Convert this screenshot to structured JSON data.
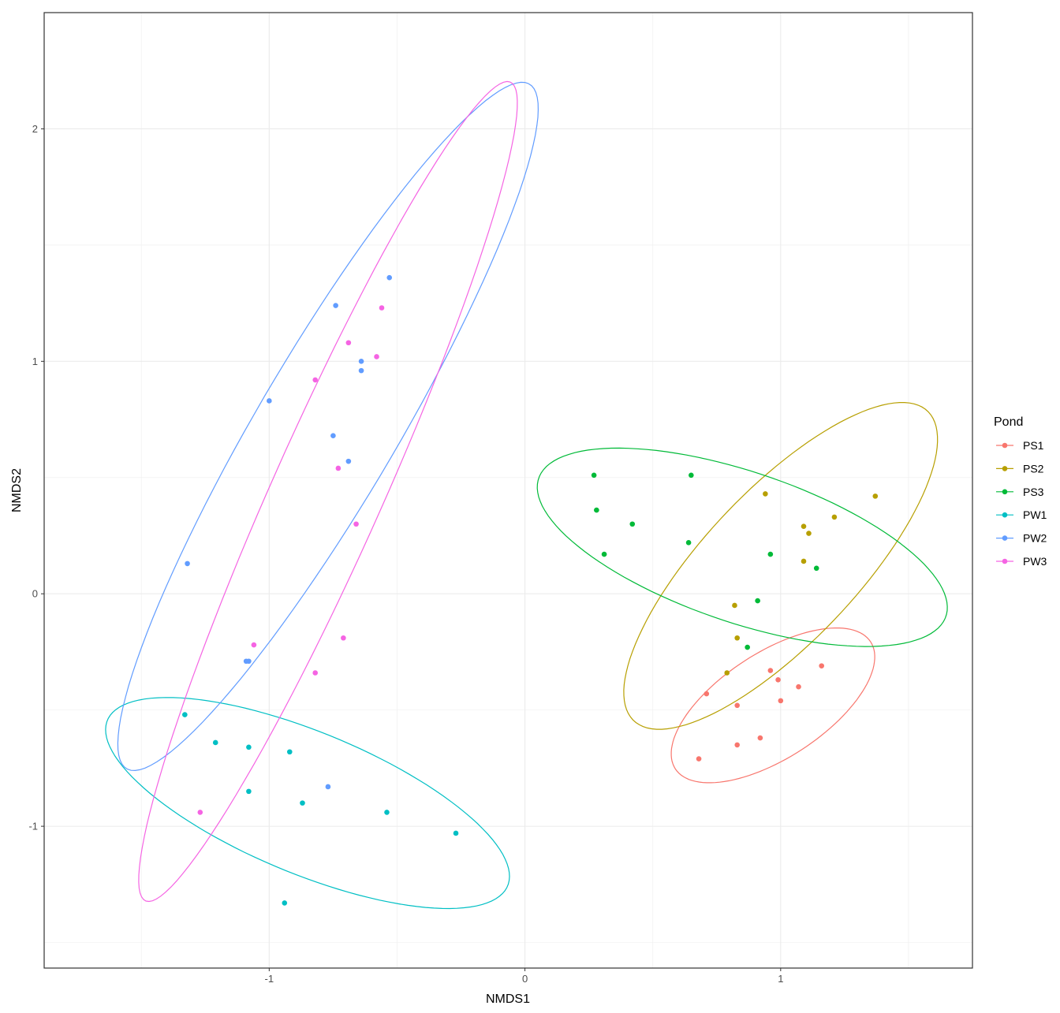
{
  "chart_data": {
    "type": "scatter",
    "xlabel": "NMDS1",
    "ylabel": "NMDS2",
    "xlim": [
      -1.88,
      1.75
    ],
    "ylim": [
      -1.61,
      2.5
    ],
    "x_ticks": [
      -1,
      0,
      1
    ],
    "x_tick_labels": [
      "-1",
      "0",
      "1"
    ],
    "y_ticks": [
      -1,
      0,
      1,
      2
    ],
    "y_tick_labels": [
      "-1",
      "0",
      "1",
      "2"
    ],
    "grid": true,
    "theme": "bw",
    "legend": {
      "title": "Pond",
      "position": "right"
    },
    "series": [
      {
        "name": "PS1",
        "color": "#F8766D",
        "ellipse": {
          "cx": 0.97,
          "cy": -0.48,
          "rx": 0.47,
          "ry": 0.22,
          "angle_deg": 37
        },
        "points": [
          [
            0.68,
            -0.71
          ],
          [
            0.71,
            -0.43
          ],
          [
            0.83,
            -0.48
          ],
          [
            0.83,
            -0.65
          ],
          [
            0.92,
            -0.62
          ],
          [
            0.96,
            -0.33
          ],
          [
            0.99,
            -0.37
          ],
          [
            1.0,
            -0.46
          ],
          [
            1.07,
            -0.4
          ],
          [
            1.16,
            -0.31
          ]
        ]
      },
      {
        "name": "PS2",
        "color": "#B79F00",
        "ellipse": {
          "cx": 1.0,
          "cy": 0.12,
          "rx": 0.88,
          "ry": 0.31,
          "angle_deg": 50
        },
        "points": [
          [
            0.79,
            -0.34
          ],
          [
            0.82,
            -0.05
          ],
          [
            0.83,
            -0.19
          ],
          [
            0.94,
            0.43
          ],
          [
            1.09,
            0.29
          ],
          [
            1.09,
            0.14
          ],
          [
            1.11,
            0.26
          ],
          [
            1.21,
            0.33
          ],
          [
            1.37,
            0.42
          ]
        ]
      },
      {
        "name": "PS3",
        "color": "#00BA38",
        "ellipse": {
          "cx": 0.85,
          "cy": 0.2,
          "rx": 0.85,
          "ry": 0.32,
          "angle_deg": -21
        },
        "points": [
          [
            0.27,
            0.51
          ],
          [
            0.28,
            0.36
          ],
          [
            0.31,
            0.17
          ],
          [
            0.42,
            0.3
          ],
          [
            0.64,
            0.22
          ],
          [
            0.65,
            0.51
          ],
          [
            0.87,
            -0.23
          ],
          [
            0.91,
            -0.03
          ],
          [
            0.96,
            0.17
          ],
          [
            1.14,
            0.11
          ]
        ]
      },
      {
        "name": "PW1",
        "color": "#00BFC4",
        "ellipse": {
          "cx": -0.85,
          "cy": -0.9,
          "rx": 0.86,
          "ry": 0.3,
          "angle_deg": -25
        },
        "points": [
          [
            -1.33,
            -0.52
          ],
          [
            -1.21,
            -0.64
          ],
          [
            -1.08,
            -0.66
          ],
          [
            -1.08,
            -0.85
          ],
          [
            -0.92,
            -0.68
          ],
          [
            -0.87,
            -0.9
          ],
          [
            -0.94,
            -1.33
          ],
          [
            -0.54,
            -0.94
          ],
          [
            -0.27,
            -1.03
          ]
        ]
      },
      {
        "name": "PW2",
        "color": "#619CFF",
        "ellipse": {
          "cx": -0.77,
          "cy": 0.72,
          "rx": 1.67,
          "ry": 0.28,
          "angle_deg": 62
        },
        "points": [
          [
            -1.32,
            0.13
          ],
          [
            -1.09,
            -0.29
          ],
          [
            -1.08,
            -0.29
          ],
          [
            -1.0,
            0.83
          ],
          [
            -0.77,
            -0.83
          ],
          [
            -0.74,
            1.24
          ],
          [
            -0.75,
            0.68
          ],
          [
            -0.69,
            0.57
          ],
          [
            -0.64,
            1.0
          ],
          [
            -0.64,
            0.96
          ],
          [
            -0.53,
            1.36
          ]
        ]
      },
      {
        "name": "PW3",
        "color": "#F564E3",
        "ellipse": {
          "cx": -0.77,
          "cy": 0.44,
          "rx": 1.9,
          "ry": 0.22,
          "angle_deg": 68
        },
        "points": [
          [
            -1.27,
            -0.94
          ],
          [
            -1.06,
            -0.22
          ],
          [
            -0.82,
            0.92
          ],
          [
            -0.82,
            -0.34
          ],
          [
            -0.73,
            0.54
          ],
          [
            -0.71,
            -0.19
          ],
          [
            -0.69,
            1.08
          ],
          [
            -0.66,
            0.3
          ],
          [
            -0.58,
            1.02
          ],
          [
            -0.56,
            1.23
          ]
        ]
      }
    ]
  }
}
